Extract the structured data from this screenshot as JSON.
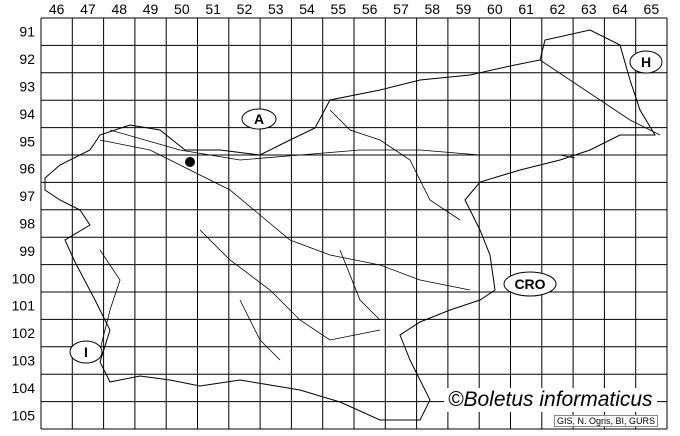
{
  "columns": [
    "46",
    "47",
    "48",
    "49",
    "50",
    "51",
    "52",
    "53",
    "54",
    "55",
    "56",
    "57",
    "58",
    "59",
    "60",
    "61",
    "62",
    "63",
    "64",
    "65"
  ],
  "rows": [
    "91",
    "92",
    "93",
    "94",
    "95",
    "96",
    "97",
    "98",
    "99",
    "100",
    "101",
    "102",
    "103",
    "104",
    "105"
  ],
  "regions": [
    {
      "code": "A",
      "name": "Austria-label"
    },
    {
      "code": "H",
      "name": "Hungary-label"
    },
    {
      "code": "I",
      "name": "Italy-label"
    },
    {
      "code": "CRO",
      "name": "Croatia-label"
    }
  ],
  "record": {
    "column": "50",
    "row": "96"
  },
  "copyright": "©Boletus informaticus",
  "credit": "GIS, N. Ogris, BI, GURS",
  "colors": {
    "lines": "#000000",
    "background": "#ffffff"
  }
}
